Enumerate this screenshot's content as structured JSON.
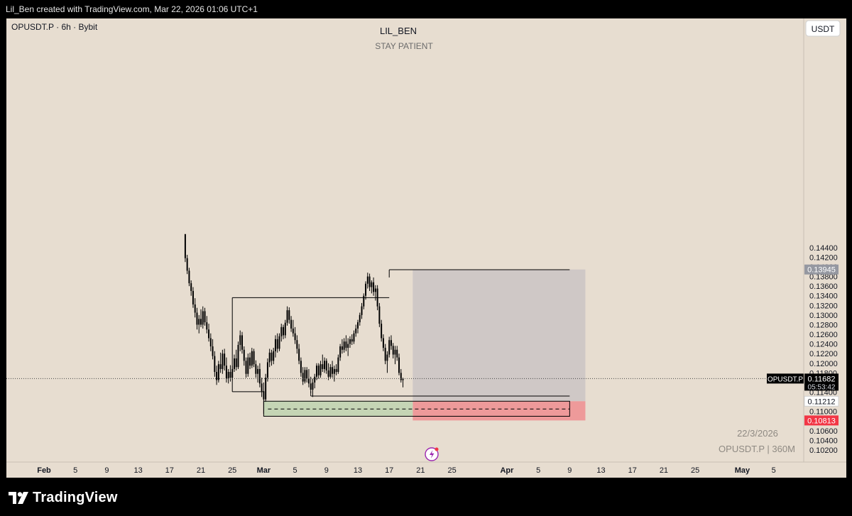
{
  "header": {
    "caption": "Lil_Ben created with TradingView.com, Mar 22, 2026 01:06 UTC+1"
  },
  "chart_header": {
    "symbol_line": "OPUSDT.P · 6h · Bybit",
    "author": "LIL_BEN",
    "note": "STAY PATIENT",
    "currency": "USDT"
  },
  "watermark": {
    "date": "22/3/2026",
    "symbol_tf": "OPUSDT.P | 360M"
  },
  "footer": {
    "brand": "TradingView"
  },
  "colors": {
    "background": "#e7ddd0",
    "candle": "#000000",
    "target_zone": "#cfc8c6",
    "profit_zone": "#c5d5b5",
    "stop_zone": "#ee9a9a",
    "stop_label": "#f23645"
  },
  "chart_data": {
    "type": "candlestick",
    "symbol": "OPUSDT.P",
    "timeframe": "6h",
    "exchange": "Bybit",
    "ylim": [
      0.101,
      0.146
    ],
    "y_ticks": [
      "0.14400",
      "0.14200",
      "0.14000",
      "0.13800",
      "0.13600",
      "0.13400",
      "0.13200",
      "0.13000",
      "0.12800",
      "0.12600",
      "0.12400",
      "0.12200",
      "0.12000",
      "0.11800",
      "0.11600",
      "0.11400",
      "0.11200",
      "0.11000",
      "0.10800",
      "0.10600",
      "0.10400",
      "0.10200"
    ],
    "x_ticks": [
      {
        "label": "Feb",
        "date": "2026-02-01",
        "bold": true
      },
      {
        "label": "5",
        "date": "2026-02-05"
      },
      {
        "label": "9",
        "date": "2026-02-09"
      },
      {
        "label": "13",
        "date": "2026-02-13"
      },
      {
        "label": "17",
        "date": "2026-02-17"
      },
      {
        "label": "21",
        "date": "2026-02-21"
      },
      {
        "label": "25",
        "date": "2026-02-25"
      },
      {
        "label": "Mar",
        "date": "2026-03-01",
        "bold": true
      },
      {
        "label": "5",
        "date": "2026-03-05"
      },
      {
        "label": "9",
        "date": "2026-03-09"
      },
      {
        "label": "13",
        "date": "2026-03-13"
      },
      {
        "label": "17",
        "date": "2026-03-17"
      },
      {
        "label": "21",
        "date": "2026-03-21"
      },
      {
        "label": "25",
        "date": "2026-03-25"
      },
      {
        "label": "Apr",
        "date": "2026-04-01",
        "bold": true
      },
      {
        "label": "5",
        "date": "2026-04-05"
      },
      {
        "label": "9",
        "date": "2026-04-09"
      },
      {
        "label": "13",
        "date": "2026-04-13"
      },
      {
        "label": "17",
        "date": "2026-04-17"
      },
      {
        "label": "21",
        "date": "2026-04-21"
      },
      {
        "label": "25",
        "date": "2026-04-25"
      },
      {
        "label": "May",
        "date": "2026-05-01",
        "bold": true
      },
      {
        "label": "5",
        "date": "2026-05-05"
      }
    ],
    "price_labels": [
      {
        "name": "target",
        "value": "0.13945",
        "price": 0.13945
      },
      {
        "name": "current",
        "symbol": "OPUSDT.P",
        "value": "0.11682",
        "countdown": "05:53:42",
        "price": 0.11682
      },
      {
        "name": "entry",
        "value": "0.11212",
        "price": 0.11212
      },
      {
        "name": "stop",
        "value": "0.10813",
        "price": 0.10813
      }
    ],
    "levels": [
      {
        "name": "range-high-line",
        "price": 0.1336,
        "from": "2026-02-25",
        "to": "2026-03-17"
      },
      {
        "name": "swing-high-line",
        "price": 0.1394,
        "from": "2026-03-17",
        "to": "2026-04-09"
      },
      {
        "name": "range-low-line",
        "price": 0.1141,
        "from": "2026-02-25",
        "to": "2026-03-01"
      },
      {
        "name": "swing-low-line",
        "price": 0.1132,
        "from": "2026-03-07",
        "to": "2026-04-09"
      }
    ],
    "zones": [
      {
        "name": "target-zone",
        "top": 0.13945,
        "bottom": 0.11212,
        "from": "2026-03-20",
        "to": "2026-04-11"
      },
      {
        "name": "stop-zone",
        "top": 0.11212,
        "bottom": 0.10813,
        "from": "2026-03-20",
        "to": "2026-04-11"
      },
      {
        "name": "demand-zone",
        "top": 0.11212,
        "bottom": 0.109,
        "from": "2026-03-01",
        "to": "2026-03-20",
        "midline": 0.1105
      },
      {
        "name": "demand-zone-box",
        "top": 0.11212,
        "bottom": 0.109,
        "from": "2026-03-01",
        "to": "2026-04-09"
      }
    ],
    "candles": [
      {
        "t": "2026-02-19 00:00",
        "o": 0.147,
        "h": 0.147,
        "l": 0.141,
        "c": 0.1418
      },
      {
        "t": "2026-02-19 06:00",
        "o": 0.1418,
        "h": 0.1425,
        "l": 0.1385,
        "c": 0.1392
      },
      {
        "t": "2026-02-19 12:00",
        "o": 0.1392,
        "h": 0.1398,
        "l": 0.136,
        "c": 0.1366
      },
      {
        "t": "2026-02-19 18:00",
        "o": 0.1366,
        "h": 0.1372,
        "l": 0.134,
        "c": 0.135
      },
      {
        "t": "2026-02-20 00:00",
        "o": 0.135,
        "h": 0.1358,
        "l": 0.1315,
        "c": 0.1322
      },
      {
        "t": "2026-02-20 06:00",
        "o": 0.1322,
        "h": 0.1335,
        "l": 0.1295,
        "c": 0.1305
      },
      {
        "t": "2026-02-20 12:00",
        "o": 0.1305,
        "h": 0.1315,
        "l": 0.127,
        "c": 0.128
      },
      {
        "t": "2026-02-20 18:00",
        "o": 0.128,
        "h": 0.13,
        "l": 0.1262,
        "c": 0.1292
      },
      {
        "t": "2026-02-21 00:00",
        "o": 0.1292,
        "h": 0.1312,
        "l": 0.1275,
        "c": 0.128
      },
      {
        "t": "2026-02-21 06:00",
        "o": 0.128,
        "h": 0.1318,
        "l": 0.1272,
        "c": 0.1308
      },
      {
        "t": "2026-02-21 12:00",
        "o": 0.1308,
        "h": 0.1315,
        "l": 0.1278,
        "c": 0.1285
      },
      {
        "t": "2026-02-21 18:00",
        "o": 0.1285,
        "h": 0.1298,
        "l": 0.1262,
        "c": 0.127
      },
      {
        "t": "2026-02-22 00:00",
        "o": 0.127,
        "h": 0.1282,
        "l": 0.1245,
        "c": 0.1252
      },
      {
        "t": "2026-02-22 06:00",
        "o": 0.1252,
        "h": 0.1262,
        "l": 0.1225,
        "c": 0.1235
      },
      {
        "t": "2026-02-22 12:00",
        "o": 0.1235,
        "h": 0.125,
        "l": 0.1208,
        "c": 0.1215
      },
      {
        "t": "2026-02-22 18:00",
        "o": 0.1215,
        "h": 0.1225,
        "l": 0.1172,
        "c": 0.1182
      },
      {
        "t": "2026-02-23 00:00",
        "o": 0.1182,
        "h": 0.1195,
        "l": 0.1155,
        "c": 0.1165
      },
      {
        "t": "2026-02-23 06:00",
        "o": 0.1165,
        "h": 0.1205,
        "l": 0.116,
        "c": 0.1198
      },
      {
        "t": "2026-02-23 12:00",
        "o": 0.1198,
        "h": 0.1222,
        "l": 0.118,
        "c": 0.1188
      },
      {
        "t": "2026-02-23 18:00",
        "o": 0.1188,
        "h": 0.1228,
        "l": 0.1178,
        "c": 0.122
      },
      {
        "t": "2026-02-24 00:00",
        "o": 0.122,
        "h": 0.123,
        "l": 0.1185,
        "c": 0.1195
      },
      {
        "t": "2026-02-24 06:00",
        "o": 0.1195,
        "h": 0.1212,
        "l": 0.116,
        "c": 0.1168
      },
      {
        "t": "2026-02-24 12:00",
        "o": 0.1168,
        "h": 0.1188,
        "l": 0.1158,
        "c": 0.1182
      },
      {
        "t": "2026-02-24 18:00",
        "o": 0.1182,
        "h": 0.1196,
        "l": 0.1162,
        "c": 0.117
      },
      {
        "t": "2026-02-25 00:00",
        "o": 0.117,
        "h": 0.1195,
        "l": 0.1165,
        "c": 0.1188
      },
      {
        "t": "2026-02-25 06:00",
        "o": 0.1188,
        "h": 0.1218,
        "l": 0.1182,
        "c": 0.121
      },
      {
        "t": "2026-02-25 12:00",
        "o": 0.121,
        "h": 0.1228,
        "l": 0.1185,
        "c": 0.1192
      },
      {
        "t": "2026-02-25 18:00",
        "o": 0.1192,
        "h": 0.1245,
        "l": 0.1188,
        "c": 0.1238
      },
      {
        "t": "2026-02-26 00:00",
        "o": 0.1238,
        "h": 0.1268,
        "l": 0.1225,
        "c": 0.1258
      },
      {
        "t": "2026-02-26 06:00",
        "o": 0.1258,
        "h": 0.1265,
        "l": 0.122,
        "c": 0.1228
      },
      {
        "t": "2026-02-26 12:00",
        "o": 0.1228,
        "h": 0.1235,
        "l": 0.1195,
        "c": 0.1205
      },
      {
        "t": "2026-02-26 18:00",
        "o": 0.1205,
        "h": 0.1212,
        "l": 0.117,
        "c": 0.1178
      },
      {
        "t": "2026-02-27 00:00",
        "o": 0.1178,
        "h": 0.122,
        "l": 0.1172,
        "c": 0.1212
      },
      {
        "t": "2026-02-27 06:00",
        "o": 0.1212,
        "h": 0.1222,
        "l": 0.1188,
        "c": 0.1195
      },
      {
        "t": "2026-02-27 12:00",
        "o": 0.1195,
        "h": 0.1232,
        "l": 0.119,
        "c": 0.1225
      },
      {
        "t": "2026-02-27 18:00",
        "o": 0.1225,
        "h": 0.123,
        "l": 0.1192,
        "c": 0.1198
      },
      {
        "t": "2026-02-28 00:00",
        "o": 0.1198,
        "h": 0.1206,
        "l": 0.117,
        "c": 0.1178
      },
      {
        "t": "2026-02-28 06:00",
        "o": 0.1178,
        "h": 0.1195,
        "l": 0.116,
        "c": 0.1188
      },
      {
        "t": "2026-02-28 12:00",
        "o": 0.1188,
        "h": 0.12,
        "l": 0.115,
        "c": 0.1158
      },
      {
        "t": "2026-02-28 18:00",
        "o": 0.1158,
        "h": 0.117,
        "l": 0.113,
        "c": 0.1142
      },
      {
        "t": "2026-03-01 00:00",
        "o": 0.1142,
        "h": 0.116,
        "l": 0.1095,
        "c": 0.1125
      },
      {
        "t": "2026-03-01 06:00",
        "o": 0.1125,
        "h": 0.1178,
        "l": 0.112,
        "c": 0.117
      },
      {
        "t": "2026-03-01 12:00",
        "o": 0.117,
        "h": 0.121,
        "l": 0.1162,
        "c": 0.1202
      },
      {
        "t": "2026-03-01 18:00",
        "o": 0.1202,
        "h": 0.123,
        "l": 0.1192,
        "c": 0.1222
      },
      {
        "t": "2026-03-02 00:00",
        "o": 0.1222,
        "h": 0.1228,
        "l": 0.1195,
        "c": 0.1205
      },
      {
        "t": "2026-03-02 06:00",
        "o": 0.1205,
        "h": 0.1232,
        "l": 0.1198,
        "c": 0.1225
      },
      {
        "t": "2026-03-02 12:00",
        "o": 0.1225,
        "h": 0.1258,
        "l": 0.1212,
        "c": 0.125
      },
      {
        "t": "2026-03-02 18:00",
        "o": 0.125,
        "h": 0.1262,
        "l": 0.1222,
        "c": 0.123
      },
      {
        "t": "2026-03-03 00:00",
        "o": 0.123,
        "h": 0.1262,
        "l": 0.1225,
        "c": 0.1256
      },
      {
        "t": "2026-03-03 06:00",
        "o": 0.1256,
        "h": 0.1282,
        "l": 0.1245,
        "c": 0.1275
      },
      {
        "t": "2026-03-03 12:00",
        "o": 0.1275,
        "h": 0.128,
        "l": 0.125,
        "c": 0.1258
      },
      {
        "t": "2026-03-03 18:00",
        "o": 0.1258,
        "h": 0.129,
        "l": 0.1252,
        "c": 0.1284
      },
      {
        "t": "2026-03-04 00:00",
        "o": 0.1284,
        "h": 0.1318,
        "l": 0.1278,
        "c": 0.131
      },
      {
        "t": "2026-03-04 06:00",
        "o": 0.131,
        "h": 0.1316,
        "l": 0.1282,
        "c": 0.129
      },
      {
        "t": "2026-03-04 12:00",
        "o": 0.129,
        "h": 0.1298,
        "l": 0.1265,
        "c": 0.1272
      },
      {
        "t": "2026-03-04 18:00",
        "o": 0.1272,
        "h": 0.129,
        "l": 0.1255,
        "c": 0.1262
      },
      {
        "t": "2026-03-05 00:00",
        "o": 0.1262,
        "h": 0.1275,
        "l": 0.124,
        "c": 0.1248
      },
      {
        "t": "2026-03-05 06:00",
        "o": 0.1248,
        "h": 0.1258,
        "l": 0.122,
        "c": 0.123
      },
      {
        "t": "2026-03-05 12:00",
        "o": 0.123,
        "h": 0.124,
        "l": 0.1198,
        "c": 0.1205
      },
      {
        "t": "2026-03-05 18:00",
        "o": 0.1205,
        "h": 0.1212,
        "l": 0.1172,
        "c": 0.118
      },
      {
        "t": "2026-03-06 00:00",
        "o": 0.118,
        "h": 0.1192,
        "l": 0.1155,
        "c": 0.1162
      },
      {
        "t": "2026-03-06 06:00",
        "o": 0.1162,
        "h": 0.1192,
        "l": 0.1158,
        "c": 0.1186
      },
      {
        "t": "2026-03-06 12:00",
        "o": 0.1186,
        "h": 0.1192,
        "l": 0.116,
        "c": 0.1168
      },
      {
        "t": "2026-03-06 18:00",
        "o": 0.1168,
        "h": 0.1188,
        "l": 0.115,
        "c": 0.1158
      },
      {
        "t": "2026-03-07 00:00",
        "o": 0.1158,
        "h": 0.1172,
        "l": 0.1138,
        "c": 0.1145
      },
      {
        "t": "2026-03-07 06:00",
        "o": 0.1145,
        "h": 0.1168,
        "l": 0.113,
        "c": 0.116
      },
      {
        "t": "2026-03-07 12:00",
        "o": 0.116,
        "h": 0.1178,
        "l": 0.1148,
        "c": 0.1172
      },
      {
        "t": "2026-03-07 18:00",
        "o": 0.1172,
        "h": 0.12,
        "l": 0.1165,
        "c": 0.1195
      },
      {
        "t": "2026-03-08 00:00",
        "o": 0.1195,
        "h": 0.12,
        "l": 0.1168,
        "c": 0.1175
      },
      {
        "t": "2026-03-08 06:00",
        "o": 0.1175,
        "h": 0.1205,
        "l": 0.117,
        "c": 0.1198
      },
      {
        "t": "2026-03-08 12:00",
        "o": 0.1198,
        "h": 0.1218,
        "l": 0.1182,
        "c": 0.1188
      },
      {
        "t": "2026-03-08 18:00",
        "o": 0.1188,
        "h": 0.1212,
        "l": 0.118,
        "c": 0.1205
      },
      {
        "t": "2026-03-09 00:00",
        "o": 0.1205,
        "h": 0.121,
        "l": 0.1178,
        "c": 0.1185
      },
      {
        "t": "2026-03-09 06:00",
        "o": 0.1185,
        "h": 0.12,
        "l": 0.1165,
        "c": 0.1172
      },
      {
        "t": "2026-03-09 12:00",
        "o": 0.1172,
        "h": 0.1198,
        "l": 0.1168,
        "c": 0.1192
      },
      {
        "t": "2026-03-09 18:00",
        "o": 0.1192,
        "h": 0.1205,
        "l": 0.117,
        "c": 0.1178
      },
      {
        "t": "2026-03-10 00:00",
        "o": 0.1178,
        "h": 0.1195,
        "l": 0.1162,
        "c": 0.1188
      },
      {
        "t": "2026-03-10 06:00",
        "o": 0.1188,
        "h": 0.1198,
        "l": 0.1175,
        "c": 0.1182
      },
      {
        "t": "2026-03-10 12:00",
        "o": 0.1182,
        "h": 0.1218,
        "l": 0.1178,
        "c": 0.1212
      },
      {
        "t": "2026-03-10 18:00",
        "o": 0.1212,
        "h": 0.124,
        "l": 0.1205,
        "c": 0.1235
      },
      {
        "t": "2026-03-11 00:00",
        "o": 0.1235,
        "h": 0.125,
        "l": 0.122,
        "c": 0.1228
      },
      {
        "t": "2026-03-11 06:00",
        "o": 0.1228,
        "h": 0.1252,
        "l": 0.1222,
        "c": 0.1245
      },
      {
        "t": "2026-03-11 12:00",
        "o": 0.1245,
        "h": 0.1258,
        "l": 0.1225,
        "c": 0.1232
      },
      {
        "t": "2026-03-11 18:00",
        "o": 0.1232,
        "h": 0.1252,
        "l": 0.1215,
        "c": 0.124
      },
      {
        "t": "2026-03-12 00:00",
        "o": 0.124,
        "h": 0.1256,
        "l": 0.1232,
        "c": 0.125
      },
      {
        "t": "2026-03-12 06:00",
        "o": 0.125,
        "h": 0.126,
        "l": 0.1238,
        "c": 0.1245
      },
      {
        "t": "2026-03-12 12:00",
        "o": 0.1245,
        "h": 0.1268,
        "l": 0.124,
        "c": 0.1262
      },
      {
        "t": "2026-03-12 18:00",
        "o": 0.1262,
        "h": 0.128,
        "l": 0.1255,
        "c": 0.1272
      },
      {
        "t": "2026-03-13 00:00",
        "o": 0.1272,
        "h": 0.129,
        "l": 0.1262,
        "c": 0.1285
      },
      {
        "t": "2026-03-13 06:00",
        "o": 0.1285,
        "h": 0.1305,
        "l": 0.1278,
        "c": 0.13
      },
      {
        "t": "2026-03-13 12:00",
        "o": 0.13,
        "h": 0.1325,
        "l": 0.1292,
        "c": 0.1318
      },
      {
        "t": "2026-03-13 18:00",
        "o": 0.1318,
        "h": 0.1345,
        "l": 0.1312,
        "c": 0.134
      },
      {
        "t": "2026-03-14 00:00",
        "o": 0.134,
        "h": 0.137,
        "l": 0.1332,
        "c": 0.1365
      },
      {
        "t": "2026-03-14 06:00",
        "o": 0.1365,
        "h": 0.1388,
        "l": 0.1355,
        "c": 0.138
      },
      {
        "t": "2026-03-14 12:00",
        "o": 0.138,
        "h": 0.1386,
        "l": 0.135,
        "c": 0.1358
      },
      {
        "t": "2026-03-14 18:00",
        "o": 0.1358,
        "h": 0.1372,
        "l": 0.1345,
        "c": 0.1368
      },
      {
        "t": "2026-03-15 00:00",
        "o": 0.1368,
        "h": 0.1378,
        "l": 0.134,
        "c": 0.1348
      },
      {
        "t": "2026-03-15 06:00",
        "o": 0.1348,
        "h": 0.1362,
        "l": 0.133,
        "c": 0.1355
      },
      {
        "t": "2026-03-15 12:00",
        "o": 0.1355,
        "h": 0.1362,
        "l": 0.131,
        "c": 0.1318
      },
      {
        "t": "2026-03-15 18:00",
        "o": 0.1318,
        "h": 0.1325,
        "l": 0.1275,
        "c": 0.1282
      },
      {
        "t": "2026-03-16 00:00",
        "o": 0.1282,
        "h": 0.129,
        "l": 0.1245,
        "c": 0.1252
      },
      {
        "t": "2026-03-16 06:00",
        "o": 0.1252,
        "h": 0.126,
        "l": 0.1225,
        "c": 0.1232
      },
      {
        "t": "2026-03-16 12:00",
        "o": 0.1232,
        "h": 0.124,
        "l": 0.1198,
        "c": 0.1205
      },
      {
        "t": "2026-03-16 18:00",
        "o": 0.1205,
        "h": 0.1225,
        "l": 0.118,
        "c": 0.1218
      },
      {
        "t": "2026-03-17 00:00",
        "o": 0.1218,
        "h": 0.1255,
        "l": 0.1212,
        "c": 0.1248
      },
      {
        "t": "2026-03-17 06:00",
        "o": 0.1248,
        "h": 0.1258,
        "l": 0.1228,
        "c": 0.1236
      },
      {
        "t": "2026-03-17 12:00",
        "o": 0.1236,
        "h": 0.1242,
        "l": 0.121,
        "c": 0.1218
      },
      {
        "t": "2026-03-17 18:00",
        "o": 0.1218,
        "h": 0.1236,
        "l": 0.1198,
        "c": 0.1228
      },
      {
        "t": "2026-03-18 00:00",
        "o": 0.1228,
        "h": 0.1236,
        "l": 0.1205,
        "c": 0.1212
      },
      {
        "t": "2026-03-18 06:00",
        "o": 0.1212,
        "h": 0.122,
        "l": 0.1175,
        "c": 0.118
      },
      {
        "t": "2026-03-18 12:00",
        "o": 0.118,
        "h": 0.1188,
        "l": 0.116,
        "c": 0.1165
      },
      {
        "t": "2026-03-18 18:00",
        "o": 0.1165,
        "h": 0.117,
        "l": 0.115,
        "c": 0.1168
      }
    ]
  }
}
